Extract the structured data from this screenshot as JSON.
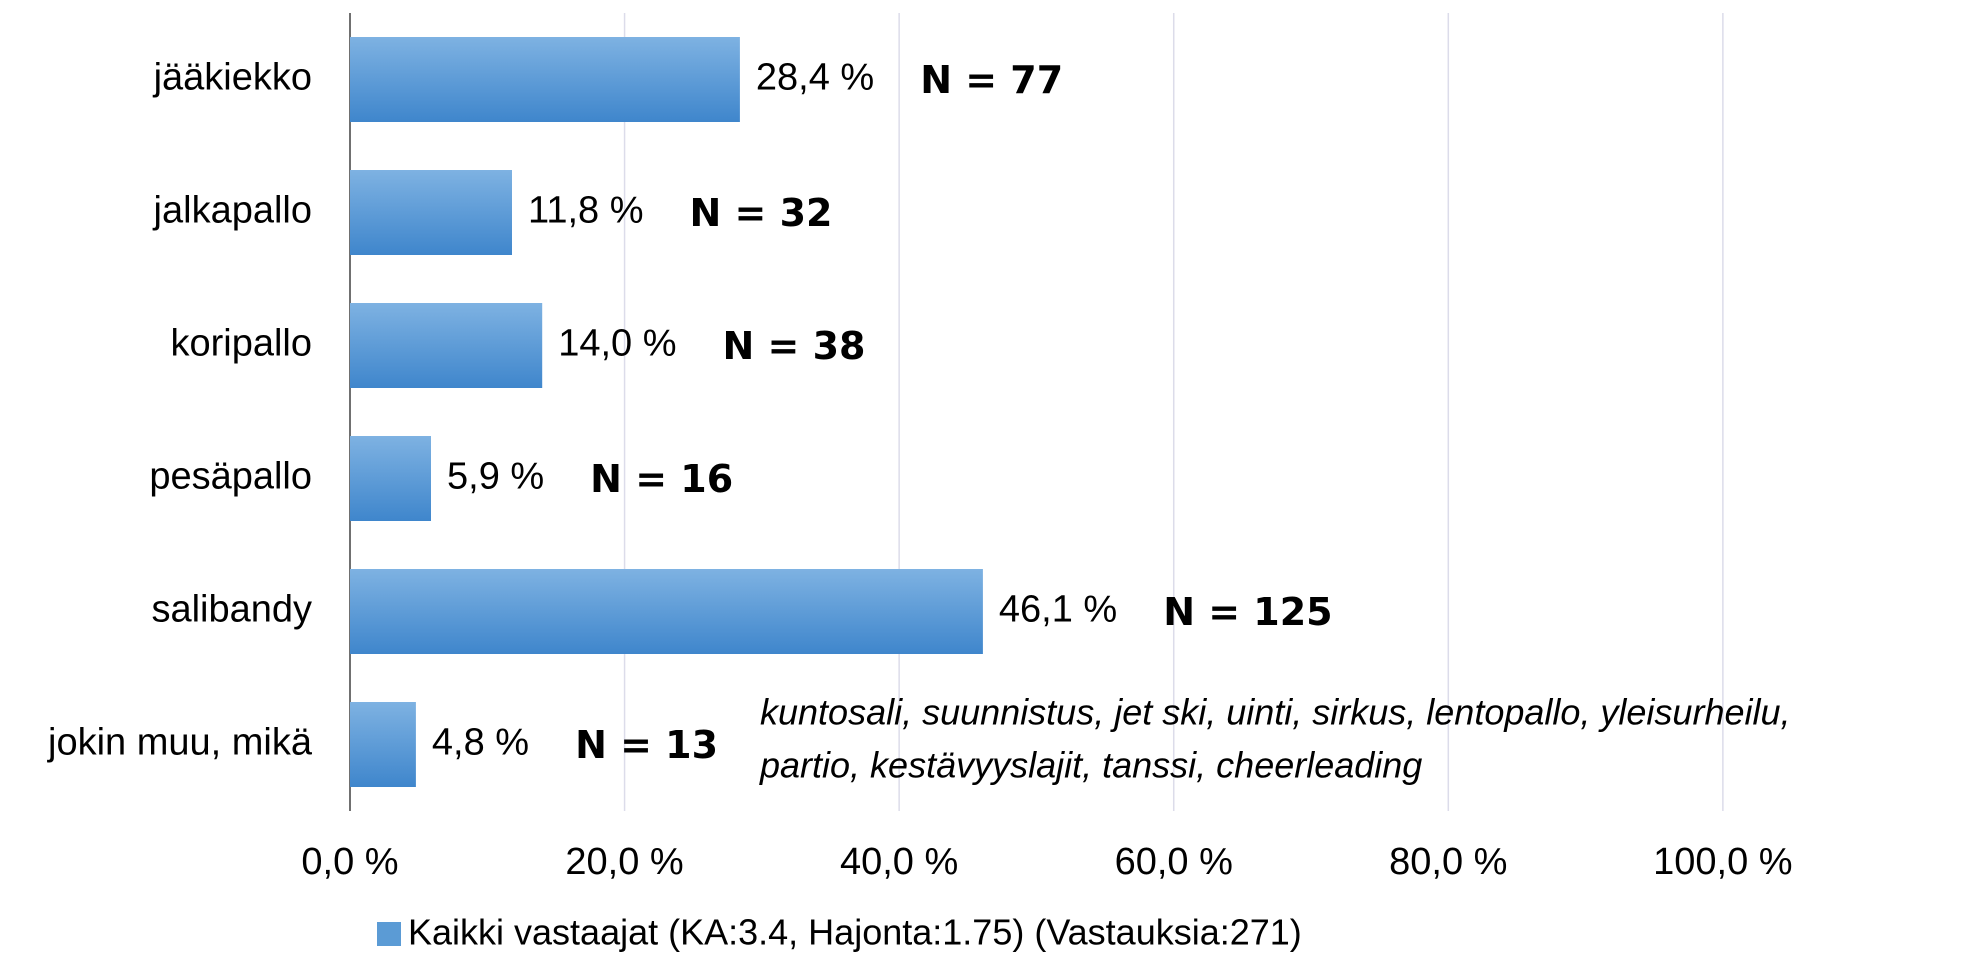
{
  "chart_data": {
    "type": "bar",
    "orientation": "horizontal",
    "categories": [
      "jääkiekko",
      "jalkapallo",
      "koripallo",
      "pesäpallo",
      "salibandy",
      "jokin muu, mikä"
    ],
    "series": [
      {
        "name": "Kaikki vastaajat (KA:3.4, Hajonta:1.75) (Vastauksia:271)",
        "color": "#5b9bd5",
        "values": [
          28.4,
          11.8,
          14.0,
          5.9,
          46.1,
          4.8
        ],
        "value_labels": [
          "28,4 %",
          "11,8 %",
          "14,0 %",
          "5,9 %",
          "46,1 %",
          "4,8 %"
        ]
      }
    ],
    "annotations": [
      "N = 77",
      "N = 32",
      "N = 38",
      "N = 16",
      "N = 125",
      "N = 13"
    ],
    "note": [
      "kuntosali, suunnistus, jet ski, uinti, sirkus, lentopallo, yleisurheilu,",
      "partio, kestävyyslajit, tanssi, cheerleading"
    ],
    "xlim": [
      0,
      118
    ],
    "xticks": [
      {
        "value": 0,
        "label": "0,0 %"
      },
      {
        "value": 20,
        "label": "20,0 %"
      },
      {
        "value": 40,
        "label": "40,0 %"
      },
      {
        "value": 60,
        "label": "60,0 %"
      },
      {
        "value": 80,
        "label": "80,0 %"
      },
      {
        "value": 100,
        "label": "100,0 %"
      }
    ],
    "grid": true,
    "legend": "bottom"
  }
}
